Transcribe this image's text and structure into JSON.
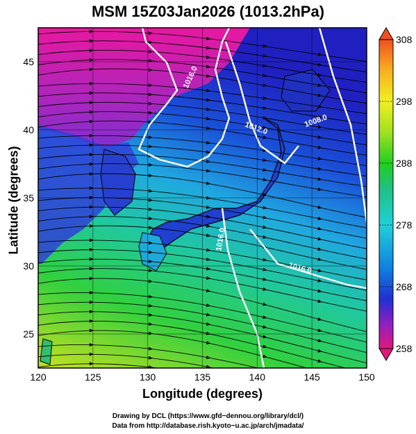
{
  "title": "MSM 15Z03Jan2026 (1013.2hPa)",
  "axes": {
    "xlabel": "Longitude (degrees)",
    "ylabel": "Latitude  (degrees)",
    "xlim": [
      120,
      150
    ],
    "ylim": [
      22.5,
      47.5
    ],
    "xticks": [
      "120",
      "125",
      "130",
      "135",
      "140",
      "145",
      "150"
    ],
    "yticks": [
      "25",
      "30",
      "35",
      "40",
      "45"
    ]
  },
  "colorbar": {
    "min": 258,
    "max": 308,
    "ticks": [
      "258",
      "268",
      "278",
      "288",
      "298",
      "308"
    ],
    "palette": [
      "#e0187c",
      "#9020c0",
      "#2030d0",
      "#1080e0",
      "#20d0d8",
      "#20c080",
      "#20d020",
      "#a0e020",
      "#f0f020",
      "#f8b020",
      "#f05020"
    ]
  },
  "isobars": [
    {
      "label": "1016.0"
    },
    {
      "label": "1012.0"
    },
    {
      "label": "1008.0"
    },
    {
      "label": "1016.0"
    },
    {
      "label": "1016.0"
    }
  ],
  "credits": {
    "line1": "Drawing by DCL (https://www.gfd−dennou.org/library/dcl/)",
    "line2": "Data from http://database.rish.kyoto−u.ac.jp/arch/jmadata/"
  },
  "layer_colors": {
    "streamline": "#000000",
    "isobar": "#ffffff",
    "coast": "#000000"
  }
}
